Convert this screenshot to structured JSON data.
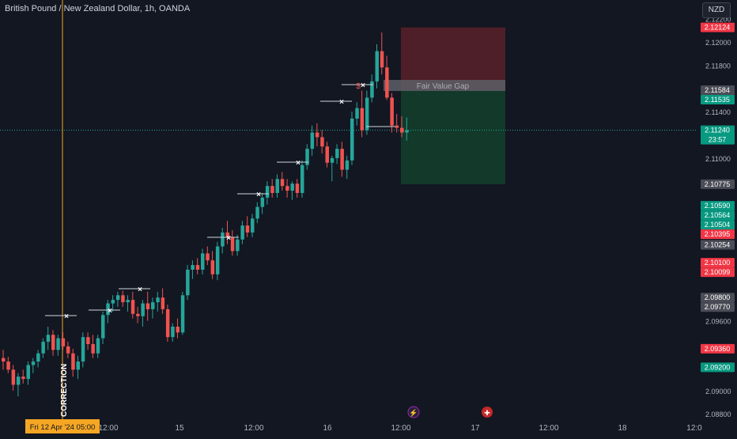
{
  "header": {
    "title": "British Pound / New Zealand Dollar, 1h, OANDA",
    "currency": "NZD"
  },
  "colors": {
    "background": "#131722",
    "up": "#26a69a",
    "down": "#ef5350",
    "axis_text": "#b2b5be",
    "crosshair": "#f5a623",
    "zone_red": "#4e1f28",
    "zone_green": "#12392a",
    "fvg": "#5d5f66",
    "tag_red": "#f23645",
    "tag_green": "#089981",
    "tag_gray": "#4a4d56",
    "date_tag": "#f5a623"
  },
  "chart_data": {
    "type": "candlestick",
    "title": "British Pound / New Zealand Dollar, 1h, OANDA",
    "ylim": [
      2.0874,
      2.1236
    ],
    "y_ticks": [
      "2.12200",
      "2.12000",
      "2.11800",
      "2.11400",
      "2.11000",
      "2.09600",
      "2.09000",
      "2.08800"
    ],
    "x_ticks": [
      "12:00",
      "15",
      "12:00",
      "16",
      "12:00",
      "17",
      "12:00",
      "18",
      "12:0"
    ],
    "price_tags": [
      {
        "value": 2.12124,
        "label": "2.12124",
        "color": "red"
      },
      {
        "value": 2.11584,
        "label": "2.11584",
        "color": "gray"
      },
      {
        "value": 2.11535,
        "label": "2.11535",
        "color": "green"
      },
      {
        "value": 2.1124,
        "label": "2.11240",
        "color": "green",
        "sub": "23:57"
      },
      {
        "value": 2.10775,
        "label": "2.10775",
        "color": "gray"
      },
      {
        "value": 2.1059,
        "label": "2.10590",
        "color": "green"
      },
      {
        "value": 2.10564,
        "label": "2.10564",
        "color": "green"
      },
      {
        "value": 2.10504,
        "label": "2.10504",
        "color": "green"
      },
      {
        "value": 2.10395,
        "label": "2.10395",
        "color": "red"
      },
      {
        "value": 2.10254,
        "label": "2.10254",
        "color": "gray"
      },
      {
        "value": 2.101,
        "label": "2.10100",
        "color": "red"
      },
      {
        "value": 2.10099,
        "label": "2.10099",
        "color": "red"
      },
      {
        "value": 2.098,
        "label": "2.09800",
        "color": "gray"
      },
      {
        "value": 2.0977,
        "label": "2.09770",
        "color": "gray"
      },
      {
        "value": 2.0936,
        "label": "2.09360",
        "color": "red"
      },
      {
        "value": 2.092,
        "label": "2.09200",
        "color": "green"
      }
    ],
    "candles": [
      [
        2.0928,
        2.0935,
        2.0918,
        2.0925
      ],
      [
        2.0925,
        2.0929,
        2.0915,
        2.0918
      ],
      [
        2.0918,
        2.0922,
        2.09,
        2.0905
      ],
      [
        2.0905,
        2.0915,
        2.0895,
        2.0912
      ],
      [
        2.0912,
        2.0918,
        2.0906,
        2.091
      ],
      [
        2.091,
        2.0925,
        2.0905,
        2.0922
      ],
      [
        2.0922,
        2.0928,
        2.0915,
        2.0925
      ],
      [
        2.0925,
        2.0935,
        2.092,
        2.0932
      ],
      [
        2.0932,
        2.0945,
        2.0928,
        2.0942
      ],
      [
        2.0942,
        2.0955,
        2.0935,
        2.0948
      ],
      [
        2.0948,
        2.0952,
        2.093,
        2.0935
      ],
      [
        2.0935,
        2.0948,
        2.093,
        2.0945
      ],
      [
        2.0945,
        2.095,
        2.0935,
        2.0938
      ],
      [
        2.0938,
        2.0942,
        2.0928,
        2.0932
      ],
      [
        2.0932,
        2.0936,
        2.0912,
        2.0918
      ],
      [
        2.0918,
        2.093,
        2.091,
        2.0925
      ],
      [
        2.0925,
        2.095,
        2.092,
        2.0946
      ],
      [
        2.0946,
        2.095,
        2.0935,
        2.094
      ],
      [
        2.094,
        2.0948,
        2.0928,
        2.0932
      ],
      [
        2.0932,
        2.0948,
        2.0928,
        2.0945
      ],
      [
        2.0945,
        2.0968,
        2.094,
        2.0965
      ],
      [
        2.0965,
        2.0978,
        2.0958,
        2.0975
      ],
      [
        2.0975,
        2.0982,
        2.0968,
        2.0978
      ],
      [
        2.0978,
        2.0985,
        2.0972,
        2.0982
      ],
      [
        2.0982,
        2.0986,
        2.0972,
        2.0976
      ],
      [
        2.0976,
        2.0982,
        2.0968,
        2.0978
      ],
      [
        2.0978,
        2.0985,
        2.0962,
        2.0966
      ],
      [
        2.0966,
        2.0972,
        2.0958,
        2.0964
      ],
      [
        2.0964,
        2.0978,
        2.0955,
        2.0975
      ],
      [
        2.0975,
        2.0985,
        2.096,
        2.097
      ],
      [
        2.097,
        2.098,
        2.0962,
        2.0976
      ],
      [
        2.0976,
        2.0985,
        2.0968,
        2.098
      ],
      [
        2.098,
        2.0988,
        2.0966,
        2.097
      ],
      [
        2.097,
        2.0974,
        2.0942,
        2.0946
      ],
      [
        2.0946,
        2.0958,
        2.0942,
        2.0955
      ],
      [
        2.0955,
        2.0962,
        2.0945,
        2.095
      ],
      [
        2.095,
        2.0985,
        2.0948,
        2.0982
      ],
      [
        2.0982,
        2.1008,
        2.0978,
        2.1004
      ],
      [
        2.1004,
        2.1012,
        2.0996,
        2.1008
      ],
      [
        2.1008,
        2.1014,
        2.1,
        2.1004
      ],
      [
        2.1004,
        2.1022,
        2.1,
        2.1018
      ],
      [
        2.1018,
        2.1024,
        2.1008,
        2.1012
      ],
      [
        2.1012,
        2.102,
        2.0996,
        2.1
      ],
      [
        2.1,
        2.1028,
        2.0995,
        2.1024
      ],
      [
        2.1024,
        2.104,
        2.1018,
        2.1036
      ],
      [
        2.1036,
        2.1046,
        2.1026,
        2.1032
      ],
      [
        2.1032,
        2.1038,
        2.1016,
        2.102
      ],
      [
        2.102,
        2.1034,
        2.1016,
        2.103
      ],
      [
        2.103,
        2.1046,
        2.1026,
        2.1042
      ],
      [
        2.1042,
        2.105,
        2.1032,
        2.1036
      ],
      [
        2.1036,
        2.1052,
        2.1032,
        2.1048
      ],
      [
        2.1048,
        2.1062,
        2.1044,
        2.1058
      ],
      [
        2.1058,
        2.107,
        2.1052,
        2.1066
      ],
      [
        2.1066,
        2.108,
        2.106,
        2.1076
      ],
      [
        2.1076,
        2.1082,
        2.1066,
        2.107
      ],
      [
        2.107,
        2.1086,
        2.1066,
        2.1082
      ],
      [
        2.1082,
        2.1088,
        2.1072,
        2.1076
      ],
      [
        2.1076,
        2.1082,
        2.1066,
        2.1072
      ],
      [
        2.1072,
        2.108,
        2.1064,
        2.1078
      ],
      [
        2.1078,
        2.1082,
        2.1066,
        2.107
      ],
      [
        2.107,
        2.1098,
        2.1066,
        2.1094
      ],
      [
        2.1094,
        2.1112,
        2.109,
        2.1108
      ],
      [
        2.1108,
        2.1128,
        2.1102,
        2.1122
      ],
      [
        2.1122,
        2.113,
        2.111,
        2.1118
      ],
      [
        2.1118,
        2.1124,
        2.1104,
        2.111
      ],
      [
        2.111,
        2.1114,
        2.1092,
        2.1096
      ],
      [
        2.1096,
        2.1102,
        2.108,
        2.11
      ],
      [
        2.11,
        2.1112,
        2.1095,
        2.1108
      ],
      [
        2.1108,
        2.1114,
        2.1084,
        2.109
      ],
      [
        2.109,
        2.1102,
        2.1082,
        2.1098
      ],
      [
        2.1098,
        2.114,
        2.1094,
        2.1134
      ],
      [
        2.1134,
        2.1148,
        2.1128,
        2.1143
      ],
      [
        2.1143,
        2.1158,
        2.1118,
        2.1124
      ],
      [
        2.1124,
        2.1158,
        2.112,
        2.1152
      ],
      [
        2.1152,
        2.1172,
        2.1148,
        2.1166
      ],
      [
        2.1166,
        2.1198,
        2.116,
        2.1192
      ],
      [
        2.1192,
        2.1208,
        2.1172,
        2.1178
      ],
      [
        2.1178,
        2.1188,
        2.115,
        2.1152
      ],
      [
        2.1152,
        2.1156,
        2.1122,
        2.1128
      ],
      [
        2.1128,
        2.1138,
        2.1122,
        2.1126
      ],
      [
        2.1126,
        2.1136,
        2.1118,
        2.1122
      ],
      [
        2.1122,
        2.1135,
        2.1115,
        2.1124
      ]
    ],
    "position": {
      "entry": 2.11584,
      "stop": 2.12124,
      "target": 2.10775
    },
    "fvg": {
      "top": 2.11584,
      "bottom": 2.11535,
      "label": "Fair Value Gap"
    },
    "annotations": [
      "×",
      "×",
      "×",
      "×",
      "×",
      "×",
      "×",
      "×",
      "$"
    ],
    "vertical_label": "CORRECTION",
    "date_tag": "Fri 12 Apr '24   05:00"
  }
}
